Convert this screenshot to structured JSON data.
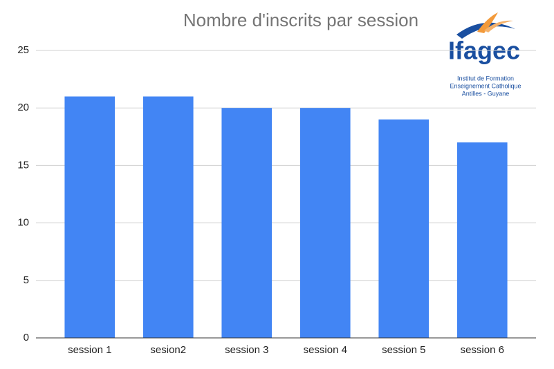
{
  "chart_data": {
    "type": "bar",
    "title": "Nombre d'inscrits par session",
    "categories": [
      "session 1",
      "sesion2",
      "session 3",
      "session 4",
      "session 5",
      "session 6"
    ],
    "values": [
      21,
      21,
      20,
      20,
      19,
      17
    ],
    "color": "#4285f4",
    "ylim": [
      0,
      25
    ],
    "yticks": [
      0,
      5,
      10,
      15,
      20,
      25
    ],
    "grid": true,
    "logo": {
      "name": "Ifagec",
      "lines": [
        "Institut de Formation",
        "Enseignement Catholique",
        "Antilles - Guyane"
      ]
    }
  }
}
